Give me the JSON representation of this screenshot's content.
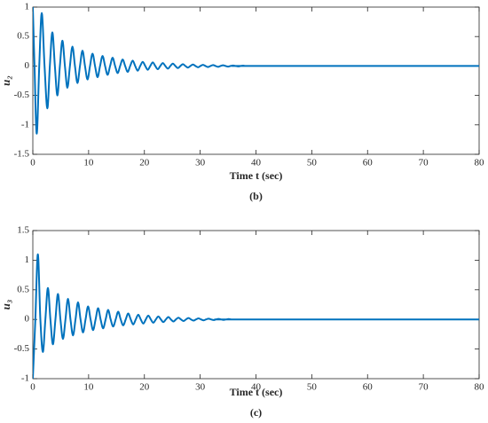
{
  "chart_data": [
    {
      "type": "line",
      "ylabel": "u₂",
      "xlabel": "Time t (sec)",
      "caption": "(b)",
      "xlim": [
        0,
        80
      ],
      "xticks": [
        0,
        10,
        20,
        30,
        40,
        50,
        60,
        70,
        80
      ],
      "ylim": [
        -1.5,
        1
      ],
      "yticks": [
        -1.5,
        -1,
        -0.5,
        0,
        0.5,
        1
      ],
      "color": "#0072bd",
      "x": [
        0,
        0.3,
        0.7,
        1.15,
        1.6,
        2.1,
        2.6,
        3.05,
        3.5,
        3.95,
        4.4,
        4.85,
        5.3,
        5.75,
        6.2,
        6.65,
        7.1,
        7.55,
        8.0,
        8.45,
        8.9,
        9.35,
        9.8,
        10.25,
        10.7,
        11.15,
        11.6,
        12.05,
        12.5,
        12.95,
        13.4,
        13.85,
        14.3,
        14.75,
        15.2,
        15.65,
        16.1,
        16.55,
        17,
        17.45,
        17.9,
        18.35,
        18.8,
        19.25,
        19.7,
        20.15,
        20.6,
        21.05,
        21.5,
        21.95,
        22.4,
        22.85,
        23.3,
        23.75,
        24.2,
        24.65,
        25.1,
        25.55,
        26,
        26.45,
        26.9,
        27.35,
        27.8,
        28.25,
        28.7,
        29.15,
        29.6,
        30.05,
        30.5,
        30.95,
        31.4,
        31.85,
        32.3,
        32.75,
        33.2,
        33.65,
        34.1,
        34.55,
        35,
        35.45,
        35.9,
        36.35,
        36.8,
        37.25,
        37.7,
        38.15,
        39,
        80
      ],
      "values": [
        1,
        0,
        -1.15,
        0,
        0.9,
        0,
        -0.72,
        0,
        0.57,
        0,
        -0.5,
        0,
        0.43,
        0,
        -0.37,
        0,
        0.33,
        0,
        -0.29,
        0,
        0.26,
        0,
        -0.23,
        0,
        0.21,
        0,
        -0.19,
        0,
        0.17,
        0,
        -0.15,
        0,
        0.14,
        0,
        -0.12,
        0,
        0.11,
        0,
        -0.1,
        0,
        0.09,
        0,
        -0.08,
        0,
        0.07,
        0,
        -0.065,
        0,
        0.06,
        0,
        -0.055,
        0,
        0.05,
        0,
        -0.045,
        0,
        0.04,
        0,
        -0.035,
        0,
        0.03,
        0,
        -0.028,
        0,
        0.025,
        0,
        -0.022,
        0,
        0.02,
        0,
        -0.018,
        0,
        0.016,
        0,
        -0.014,
        0,
        0.012,
        0,
        -0.01,
        0,
        0.008,
        0,
        -0.007,
        0,
        0.006,
        0,
        0,
        0
      ]
    },
    {
      "type": "line",
      "ylabel": "u₃",
      "xlabel": "Time t (sec)",
      "caption": "(c)",
      "xlim": [
        0,
        80
      ],
      "xticks": [
        0,
        10,
        20,
        30,
        40,
        50,
        60,
        70,
        80
      ],
      "ylim": [
        -1,
        1.5
      ],
      "yticks": [
        -1,
        -0.5,
        0,
        0.5,
        1,
        1.5
      ],
      "color": "#0072bd",
      "x": [
        0,
        0.45,
        0.9,
        1.35,
        1.8,
        2.25,
        2.7,
        3.15,
        3.6,
        4.05,
        4.5,
        4.95,
        5.4,
        5.85,
        6.3,
        6.75,
        7.2,
        7.65,
        8.1,
        8.55,
        9,
        9.45,
        9.9,
        10.35,
        10.8,
        11.25,
        11.7,
        12.15,
        12.6,
        13.05,
        13.5,
        13.95,
        14.4,
        14.85,
        15.3,
        15.75,
        16.2,
        16.65,
        17.1,
        17.55,
        18,
        18.45,
        18.9,
        19.35,
        19.8,
        20.25,
        20.7,
        21.15,
        21.6,
        22.05,
        22.5,
        22.95,
        23.4,
        23.85,
        24.3,
        24.75,
        25.2,
        25.65,
        26.1,
        26.55,
        27,
        27.45,
        27.9,
        28.35,
        28.8,
        29.25,
        29.7,
        30.15,
        30.6,
        31.05,
        31.5,
        31.95,
        32.4,
        32.85,
        33.3,
        33.75,
        34.2,
        34.65,
        35.1,
        35.55,
        36,
        80
      ],
      "values": [
        -1,
        0,
        1.1,
        0,
        -0.55,
        0,
        0.53,
        0,
        -0.42,
        0,
        0.43,
        0,
        -0.33,
        0,
        0.35,
        0,
        -0.27,
        0,
        0.29,
        0,
        -0.22,
        0,
        0.22,
        0,
        -0.18,
        0,
        0.19,
        0,
        -0.15,
        0,
        0.16,
        0,
        -0.12,
        0,
        0.13,
        0,
        -0.1,
        0,
        0.1,
        0,
        -0.085,
        0,
        0.08,
        0,
        -0.07,
        0,
        0.065,
        0,
        -0.055,
        0,
        0.05,
        0,
        -0.045,
        0,
        0.04,
        0,
        -0.035,
        0,
        0.03,
        0,
        -0.027,
        0,
        0.024,
        0,
        -0.02,
        0,
        0.018,
        0,
        -0.015,
        0,
        0.013,
        0,
        -0.011,
        0,
        0.009,
        0,
        -0.008,
        0,
        0.006,
        0,
        0,
        0
      ]
    }
  ]
}
